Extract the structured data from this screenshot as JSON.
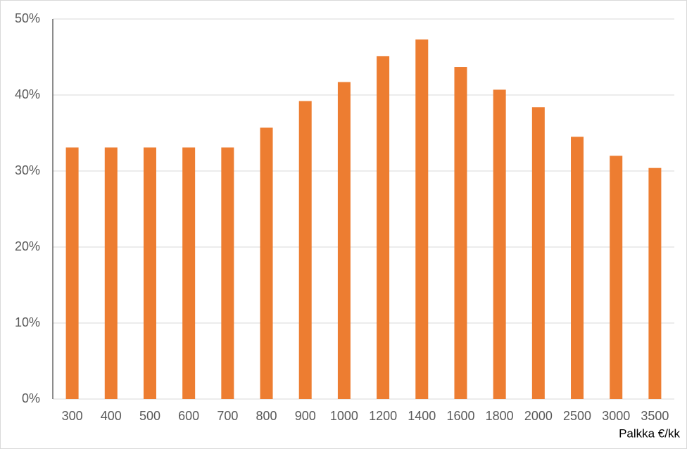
{
  "chart_data": {
    "type": "bar",
    "x_label": "Palkka €/kk",
    "categories": [
      "300",
      "400",
      "500",
      "600",
      "700",
      "800",
      "900",
      "1000",
      "1200",
      "1400",
      "1600",
      "1800",
      "2000",
      "2500",
      "3000",
      "3500"
    ],
    "values": [
      33.1,
      33.1,
      33.1,
      33.1,
      33.1,
      35.7,
      39.2,
      41.7,
      45.1,
      47.3,
      43.7,
      40.7,
      38.4,
      34.5,
      32.0,
      30.4
    ],
    "color": "#ed7d31",
    "ylim": [
      0,
      50
    ],
    "yticks": [
      {
        "value": 0,
        "label": "0%"
      },
      {
        "value": 10,
        "label": "10%"
      },
      {
        "value": 20,
        "label": "20%"
      },
      {
        "value": 30,
        "label": "30%"
      },
      {
        "value": 40,
        "label": "40%"
      },
      {
        "value": 50,
        "label": "50%"
      }
    ],
    "grid": true
  }
}
